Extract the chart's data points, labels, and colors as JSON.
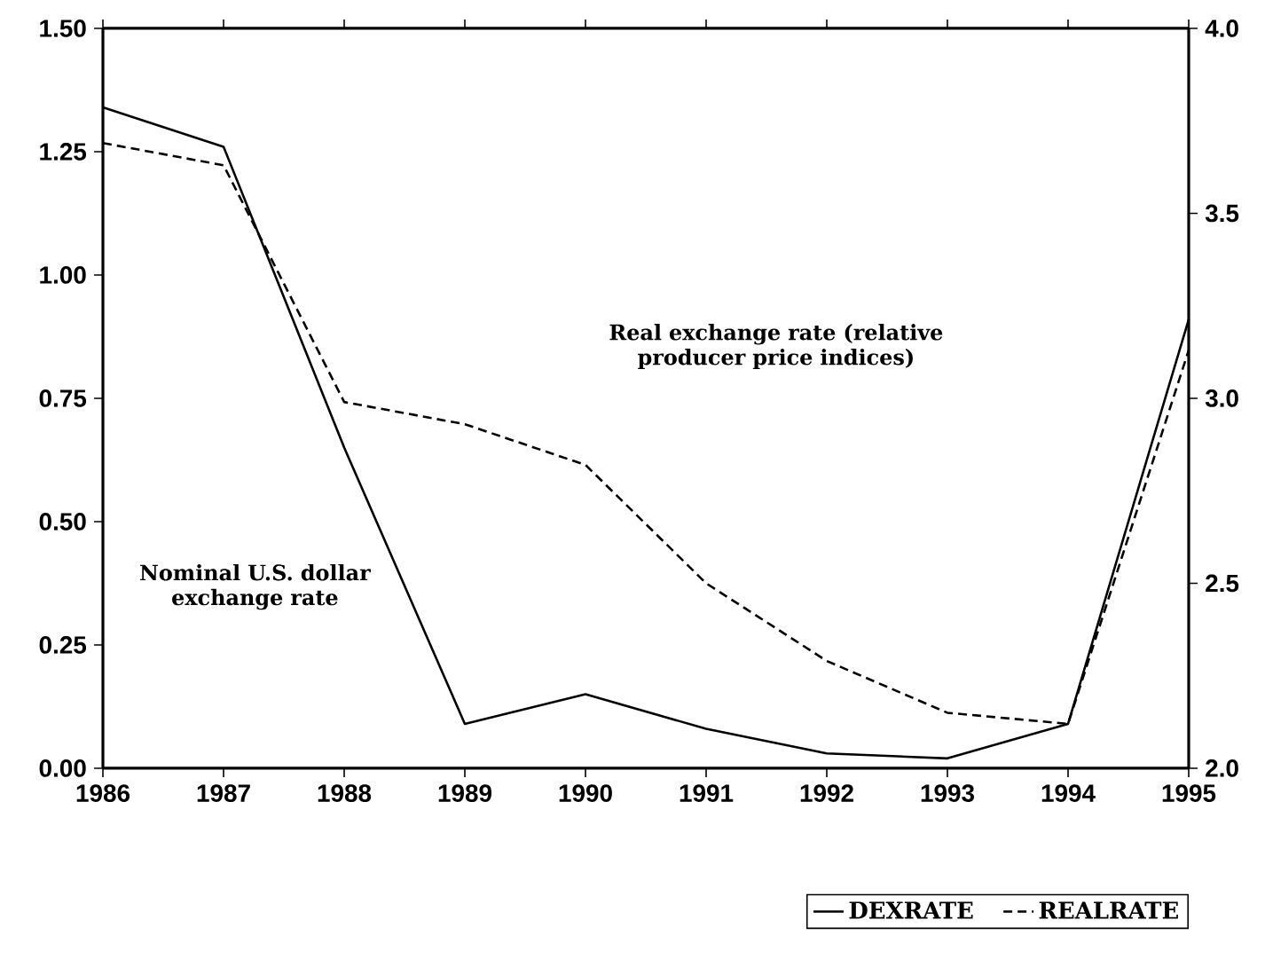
{
  "chart_data": {
    "type": "line",
    "x": [
      1986,
      1987,
      1988,
      1989,
      1990,
      1991,
      1992,
      1993,
      1994,
      1995
    ],
    "series": [
      {
        "name": "DEXRATE",
        "color": "#000000",
        "line_style": "solid",
        "values": [
          1.34,
          1.26,
          0.65,
          0.09,
          0.15,
          0.08,
          0.03,
          0.02,
          0.09,
          0.91
        ]
      },
      {
        "name": "REALRATE",
        "color": "#000000",
        "line_style": "dashed",
        "axis": "y2",
        "values": [
          3.69,
          3.63,
          2.99,
          2.93,
          2.82,
          2.5,
          2.29,
          2.15,
          2.12,
          3.13
        ]
      }
    ],
    "xlim": [
      1986,
      1995
    ],
    "xticks": [
      1986,
      1987,
      1988,
      1989,
      1990,
      1991,
      1992,
      1993,
      1994,
      1995
    ],
    "ylim": [
      0,
      1.5
    ],
    "yticks": [
      {
        "value": 0,
        "label": "0.00"
      },
      {
        "value": 0.25,
        "label": "0.25"
      },
      {
        "value": 0.5,
        "label": "0.50"
      },
      {
        "value": 0.75,
        "label": "0.75"
      },
      {
        "value": 1,
        "label": "1.00"
      },
      {
        "value": 1.25,
        "label": "1.25"
      },
      {
        "value": 1.5,
        "label": "1.50"
      }
    ],
    "y2lim": [
      2,
      4
    ],
    "y2ticks": [
      {
        "value": 2,
        "label": "2.0"
      },
      {
        "value": 2.5,
        "label": "2.5"
      },
      {
        "value": 3,
        "label": "3.0"
      },
      {
        "value": 3.5,
        "label": "3.5"
      },
      {
        "value": 4,
        "label": "4.0"
      }
    ],
    "annotations": [
      "Real exchange rate (relative producer price indices)",
      "Nominal U.S. dollar exchange rate"
    ],
    "legend": "bottom right",
    "grid": false,
    "marker": "none"
  }
}
